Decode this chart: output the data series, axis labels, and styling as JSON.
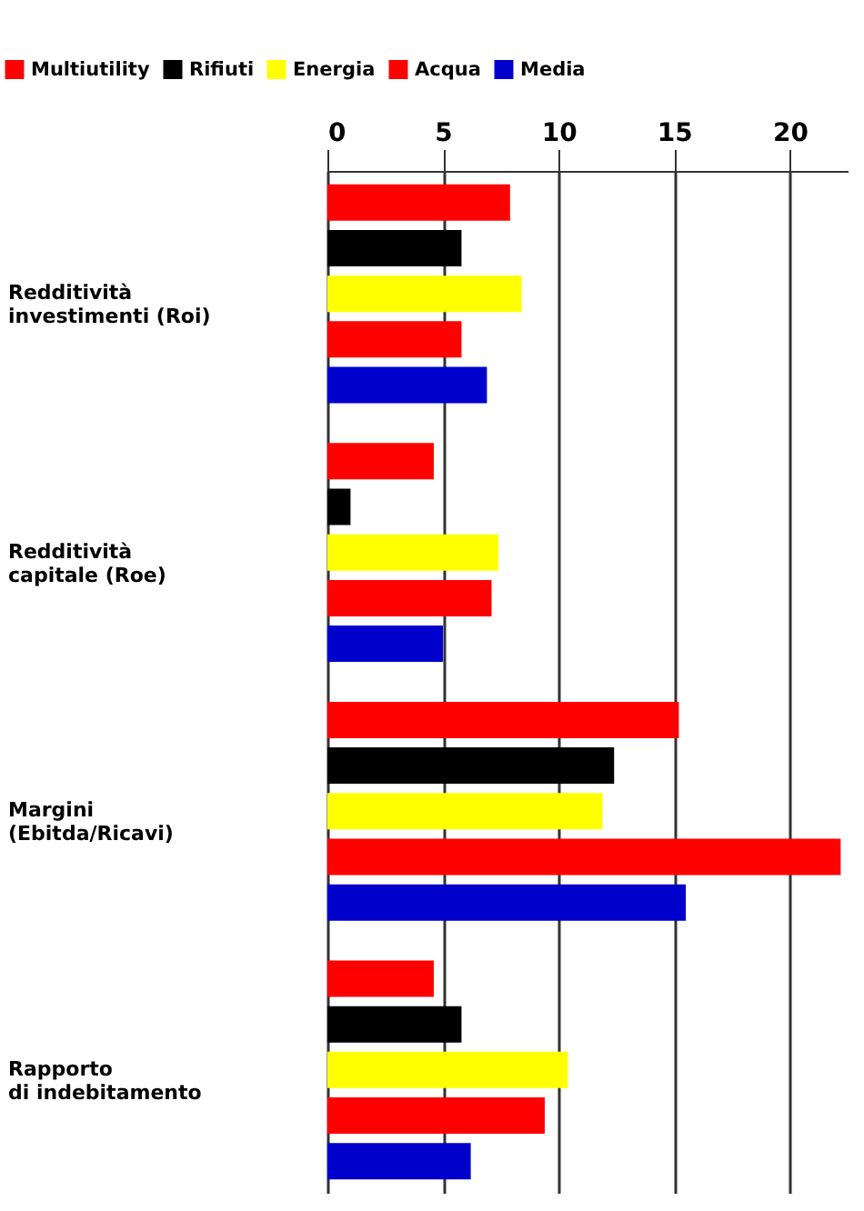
{
  "chart_data": {
    "type": "bar",
    "orientation": "horizontal",
    "categories": [
      "Redditività\ninvestimenti (Roi)",
      "Redditività\ncapitale (Roe)",
      "Margini\n(Ebitda/Ricavi)",
      "Rapporto\ndi indebitamento"
    ],
    "series": [
      {
        "name": "Multiutility",
        "color": "#ff0000",
        "values": [
          7.9,
          4.6,
          15.2,
          4.6
        ]
      },
      {
        "name": "Rifiuti",
        "color": "#000000",
        "values": [
          5.8,
          1.0,
          12.4,
          5.8
        ]
      },
      {
        "name": "Energia",
        "color": "#ffff00",
        "values": [
          8.4,
          7.4,
          11.9,
          10.4
        ]
      },
      {
        "name": "Acqua",
        "color": "#ff0000",
        "values": [
          5.8,
          7.1,
          22.2,
          9.4
        ]
      },
      {
        "name": "Media",
        "color": "#0000cc",
        "values": [
          6.9,
          5.0,
          15.5,
          6.2
        ]
      }
    ],
    "xlim": [
      0,
      22.5
    ],
    "xticks": [
      0,
      5,
      10,
      15,
      20
    ],
    "grid": "x",
    "legend": "top"
  }
}
